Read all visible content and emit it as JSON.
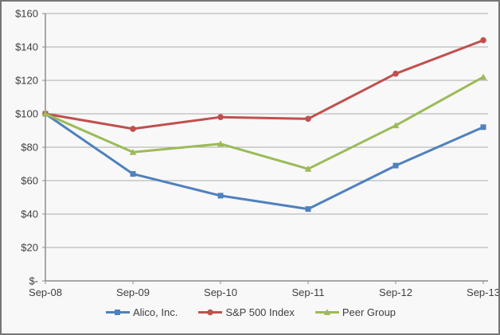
{
  "chart_data": {
    "type": "line",
    "title": "",
    "xlabel": "",
    "ylabel": "",
    "categories": [
      "Sep-08",
      "Sep-09",
      "Sep-10",
      "Sep-11",
      "Sep-12",
      "Sep-13"
    ],
    "series": [
      {
        "name": "Alico, Inc.",
        "color": "#4F81BD",
        "marker": "square",
        "values": [
          100,
          64,
          51,
          43,
          69,
          92
        ]
      },
      {
        "name": "S&P 500 Index",
        "color": "#C0504D",
        "marker": "circle",
        "values": [
          100,
          91,
          98,
          97,
          124,
          144
        ]
      },
      {
        "name": "Peer Group",
        "color": "#9BBB59",
        "marker": "triangle",
        "values": [
          100,
          77,
          82,
          67,
          93,
          122
        ]
      }
    ],
    "y_axis": {
      "min": 0,
      "max": 160,
      "step": 20,
      "tick_labels": [
        "$-",
        "$20",
        "$40",
        "$60",
        "$80",
        "$100",
        "$120",
        "$140",
        "$160"
      ]
    },
    "grid": true,
    "legend_position": "bottom"
  },
  "style": {
    "grid_color": "#ababab",
    "axis_color": "#8c8c8c",
    "text_color": "#3f3f3f",
    "background": "#f8f8f8",
    "border_color": "#767676"
  }
}
